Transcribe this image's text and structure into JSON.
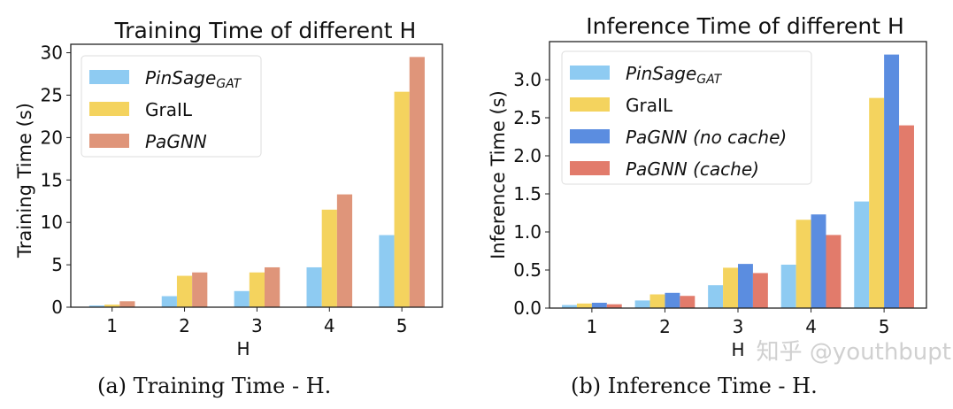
{
  "chart_data": [
    {
      "type": "bar",
      "title": "Training Time of different H",
      "xlabel": "H",
      "ylabel": "Training Time (s)",
      "categories": [
        "1",
        "2",
        "3",
        "4",
        "5"
      ],
      "ylim": [
        0,
        31
      ],
      "yticks": [
        0,
        5,
        10,
        15,
        20,
        25,
        30
      ],
      "ytick_labels": [
        "0",
        "5",
        "10",
        "15",
        "20",
        "25",
        "30"
      ],
      "grid": false,
      "legend_position": "top-left",
      "series": [
        {
          "name": "PinSage",
          "subscript": "GAT",
          "italic": true,
          "color": "#8ecbf2",
          "values": [
            0.2,
            1.3,
            1.9,
            4.7,
            8.5
          ]
        },
        {
          "name": "GraIL",
          "italic": false,
          "color": "#f4d35e",
          "values": [
            0.3,
            3.7,
            4.1,
            11.5,
            25.4
          ]
        },
        {
          "name": "PaGNN",
          "italic": true,
          "color": "#df957a",
          "values": [
            0.7,
            4.1,
            4.7,
            13.3,
            29.5
          ]
        }
      ],
      "caption": "(a) Training Time - H."
    },
    {
      "type": "bar",
      "title": "Inference Time of different H",
      "xlabel": "H",
      "ylabel": "Inference Time (s)",
      "categories": [
        "1",
        "2",
        "3",
        "4",
        "5"
      ],
      "ylim": [
        0,
        3.5
      ],
      "yticks": [
        0,
        0.5,
        1,
        1.5,
        2,
        2.5,
        3
      ],
      "ytick_labels": [
        "0.0",
        "0.5",
        "1.0",
        "1.5",
        "2.0",
        "2.5",
        "3.0"
      ],
      "grid": false,
      "legend_position": "top-left",
      "series": [
        {
          "name": "PinSage",
          "subscript": "GAT",
          "italic": true,
          "color": "#8ecbf2",
          "values": [
            0.04,
            0.1,
            0.3,
            0.57,
            1.4
          ]
        },
        {
          "name": "GraIL",
          "italic": false,
          "color": "#f4d35e",
          "values": [
            0.06,
            0.18,
            0.53,
            1.16,
            2.76
          ]
        },
        {
          "name": "PaGNN (no cache)",
          "italic": true,
          "color": "#5b8de0",
          "values": [
            0.07,
            0.2,
            0.58,
            1.23,
            3.33
          ]
        },
        {
          "name": "PaGNN (cache)",
          "italic": true,
          "color": "#e27b6b",
          "values": [
            0.05,
            0.16,
            0.46,
            0.96,
            2.4
          ]
        }
      ],
      "caption": "(b) Inference Time - H."
    }
  ],
  "watermark": "知乎 @youthbupt"
}
